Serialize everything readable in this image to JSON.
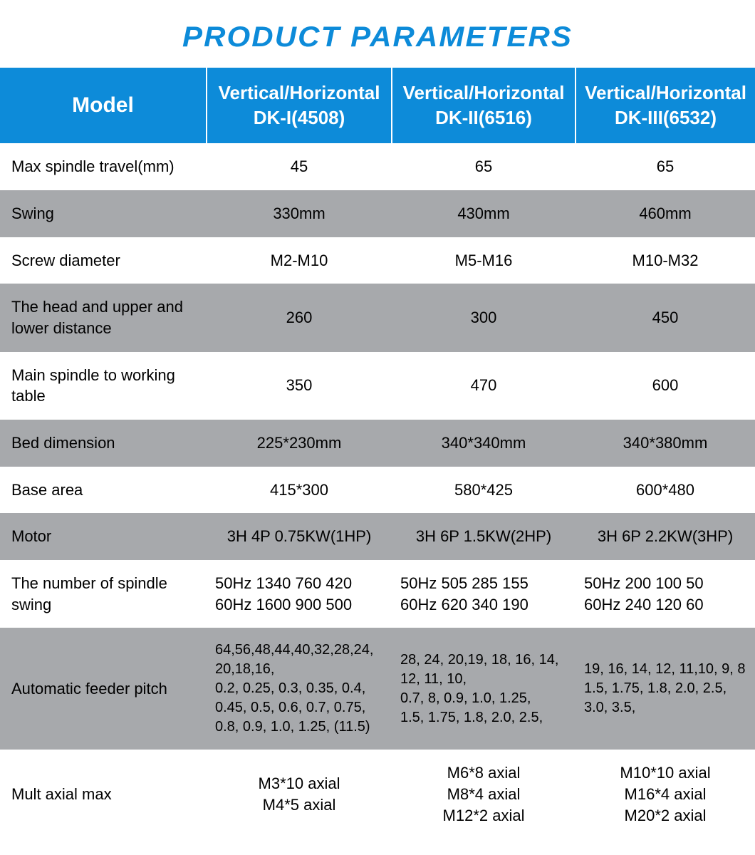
{
  "title": "PRODUCT  PARAMETERS",
  "title_color": "#0d8bd9",
  "title_fontsize": 40,
  "header_bg": "#0d8bd9",
  "header_fontsize": 26,
  "header_model_fontsize": 30,
  "stripe_a_bg": "#ffffff",
  "stripe_b_bg": "#a7a9ac",
  "cell_fontsize": 22,
  "feeder_fontsize": 20,
  "columns": {
    "model_label": "Model",
    "c1_line1": "Vertical/Horizontal",
    "c1_line2": "DK-I(4508)",
    "c2_line1": "Vertical/Horizontal",
    "c2_line2": "DK-II(6516)",
    "c3_line1": "Vertical/Horizontal",
    "c3_line2": "DK-III(6532)"
  },
  "rows": [
    {
      "label": "Max spindle travel(mm)",
      "c1": "45",
      "c2": "65",
      "c3": "65",
      "stripe": "a"
    },
    {
      "label": "Swing",
      "c1": "330mm",
      "c2": "430mm",
      "c3": "460mm",
      "stripe": "b"
    },
    {
      "label": "Screw diameter",
      "c1": "M2-M10",
      "c2": "M5-M16",
      "c3": "M10-M32",
      "stripe": "a"
    },
    {
      "label": "The head and upper and\n     lower distance",
      "c1": "260",
      "c2": "300",
      "c3": "450",
      "stripe": "b"
    },
    {
      "label": "Main spindle to working table",
      "c1": "350",
      "c2": "470",
      "c3": "600",
      "stripe": "a"
    },
    {
      "label": "Bed dimension",
      "c1": "225*230mm",
      "c2": "340*340mm",
      "c3": "340*380mm",
      "stripe": "b"
    },
    {
      "label": "Base area",
      "c1": "415*300",
      "c2": "580*425",
      "c3": "600*480",
      "stripe": "a"
    },
    {
      "label": "Motor",
      "c1": "3H 4P 0.75KW(1HP)",
      "c2": "3H 6P 1.5KW(2HP)",
      "c3": "3H 6P 2.2KW(3HP)",
      "stripe": "b"
    },
    {
      "label": "The number of spindle swing",
      "c1": "50Hz 1340 760 420\n60Hz 1600 900 500",
      "c2": "50Hz 505 285 155\n60Hz 620 340 190",
      "c3": "50Hz 200 100 50\n60Hz 240 120 60",
      "stripe": "a",
      "align": "left"
    },
    {
      "label": "Automatic feeder pitch",
      "c1": "64,56,48,44,40,32,28,24,\n20,18,16,\n 0.2, 0.25, 0.3, 0.35, 0.4,\n 0.45, 0.5, 0.6, 0.7, 0.75,\n 0.8, 0.9, 1.0, 1.25, (11.5)",
      "c2": "28, 24, 20,19, 18, 16, 14,\n12, 11, 10,\n 0.7, 8, 0.9, 1.0, 1.25,\n 1.5, 1.75, 1.8, 2.0, 2.5,",
      "c3": "19, 16, 14, 12, 11,10, 9, 8\n1.5, 1.75, 1.8, 2.0, 2.5,\n 3.0, 3.5,",
      "stripe": "b",
      "align": "left",
      "small": true
    },
    {
      "label": "Mult axial max",
      "c1": "M3*10 axial\nM4*5 axial",
      "c2": "M6*8 axial\nM8*4 axial\nM12*2 axial",
      "c3": "M10*10 axial\nM16*4 axial\nM20*2 axial",
      "stripe": "a"
    }
  ]
}
